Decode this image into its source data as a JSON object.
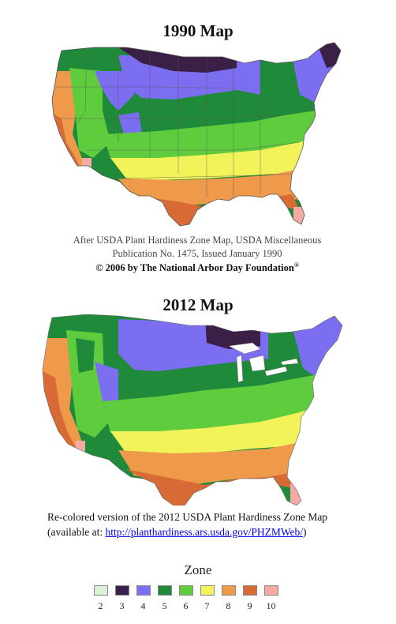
{
  "maps": {
    "map1990": {
      "title": "1990 Map",
      "caption_line1": "After USDA Plant Hardiness Zone Map, USDA Miscellaneous",
      "caption_line2": "Publication No. 1475, Issued January 1990",
      "copyright": "© 2006 by The National Arbor Day Foundation",
      "copyright_mark": "®"
    },
    "map2012": {
      "title": "2012 Map",
      "caption_line1": "Re-colored version of the 2012 USDA Plant Hardiness Zone Map",
      "caption_line2_prefix": "(available at: ",
      "link_text": "http://planthardiness.ars.usda.gov/PHZMWeb/",
      "caption_line2_suffix": ")"
    }
  },
  "legend": {
    "title": "Zone",
    "zones": [
      {
        "label": "2",
        "color": "#d9f2d6"
      },
      {
        "label": "3",
        "color": "#3a1f47"
      },
      {
        "label": "4",
        "color": "#7b6ef0"
      },
      {
        "label": "5",
        "color": "#1f8a3a"
      },
      {
        "label": "6",
        "color": "#5fcc3e"
      },
      {
        "label": "7",
        "color": "#f2f25a"
      },
      {
        "label": "8",
        "color": "#ee9a4a"
      },
      {
        "label": "9",
        "color": "#d86a36"
      },
      {
        "label": "10",
        "color": "#f5aaa4"
      }
    ]
  }
}
